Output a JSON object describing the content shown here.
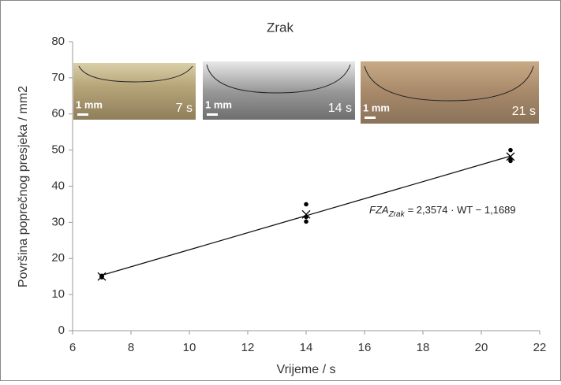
{
  "chart_data": {
    "type": "scatter",
    "title": "Zrak",
    "x_label": "Vrijeme / s",
    "y_label": "Površina poprečnog presjeka / mm2",
    "xlim": [
      6,
      22
    ],
    "xticks": [
      6,
      8,
      10,
      12,
      14,
      16,
      18,
      20,
      22
    ],
    "ylim": [
      0,
      80
    ],
    "yticks": [
      0,
      10,
      20,
      30,
      40,
      50,
      60,
      70,
      80
    ],
    "series": [
      {
        "marker": "dot",
        "color": "#000000",
        "x": [
          7,
          7,
          7,
          14,
          14,
          14,
          21,
          21,
          21
        ],
        "values": [
          15.2,
          15,
          14.8,
          35,
          31.5,
          30.2,
          50,
          47.5,
          47
        ]
      },
      {
        "marker": "cross",
        "color": "#000000",
        "x": [
          7,
          14,
          21
        ],
        "values": [
          15,
          32.2,
          48.2
        ]
      }
    ],
    "trendline": {
      "slope": 2.3574,
      "intercept": -1.1689,
      "from": 7,
      "to": 21,
      "lhs": "FZA",
      "sub": "Zrak",
      "rhs": "= 2,3574 · WT − 1,1689"
    },
    "insets": [
      {
        "scale": "1 mm",
        "time": "7 s"
      },
      {
        "scale": "1 mm",
        "time": "14 s"
      },
      {
        "scale": "1 mm",
        "time": "21 s"
      }
    ]
  }
}
